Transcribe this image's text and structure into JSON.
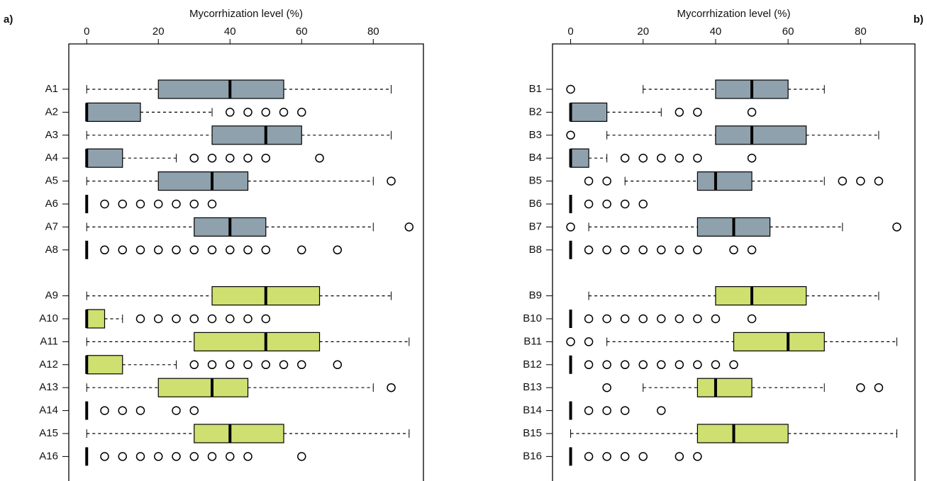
{
  "chart_data": [
    {
      "type": "boxplot",
      "panel_label": "a)",
      "xlabel": "Mycorrhization level (%)",
      "xlim": [
        -5,
        94
      ],
      "xticks": [
        0,
        20,
        40,
        60,
        80
      ],
      "groups": [
        {
          "color": "#8fa1ad",
          "categories": [
            "A1",
            "A2",
            "A3",
            "A4",
            "A5",
            "A6",
            "A7",
            "A8"
          ],
          "boxes": [
            {
              "whislo": 0,
              "q1": 20,
              "med": 40,
              "q3": 55,
              "whishi": 85,
              "fliers": []
            },
            {
              "whislo": 0,
              "q1": 0,
              "med": 0,
              "q3": 15,
              "whishi": 35,
              "fliers": [
                40,
                45,
                50,
                55,
                60
              ]
            },
            {
              "whislo": 0,
              "q1": 35,
              "med": 50,
              "q3": 60,
              "whishi": 85,
              "fliers": []
            },
            {
              "whislo": 0,
              "q1": 0,
              "med": 0,
              "q3": 10,
              "whishi": 25,
              "fliers": [
                30,
                35,
                40,
                45,
                50,
                65
              ]
            },
            {
              "whislo": 0,
              "q1": 20,
              "med": 35,
              "q3": 45,
              "whishi": 80,
              "fliers": [
                85
              ]
            },
            {
              "whislo": 0,
              "q1": 0,
              "med": 0,
              "q3": 0,
              "whishi": 0,
              "fliers": [
                5,
                10,
                15,
                20,
                25,
                30,
                35
              ]
            },
            {
              "whislo": 0,
              "q1": 30,
              "med": 40,
              "q3": 50,
              "whishi": 80,
              "fliers": [
                90
              ]
            },
            {
              "whislo": 0,
              "q1": 0,
              "med": 0,
              "q3": 0,
              "whishi": 0,
              "fliers": [
                5,
                10,
                15,
                20,
                25,
                30,
                35,
                40,
                45,
                50,
                60,
                70
              ]
            }
          ]
        },
        {
          "color": "#cfe070",
          "categories": [
            "A9",
            "A10",
            "A11",
            "A12",
            "A13",
            "A14",
            "A15",
            "A16"
          ],
          "boxes": [
            {
              "whislo": 0,
              "q1": 35,
              "med": 50,
              "q3": 65,
              "whishi": 85,
              "fliers": []
            },
            {
              "whislo": 0,
              "q1": 0,
              "med": 0,
              "q3": 5,
              "whishi": 10,
              "fliers": [
                15,
                20,
                25,
                30,
                35,
                40,
                45,
                50
              ]
            },
            {
              "whislo": 0,
              "q1": 30,
              "med": 50,
              "q3": 65,
              "whishi": 90,
              "fliers": []
            },
            {
              "whislo": 0,
              "q1": 0,
              "med": 0,
              "q3": 10,
              "whishi": 25,
              "fliers": [
                30,
                35,
                40,
                45,
                50,
                55,
                60,
                70
              ]
            },
            {
              "whislo": 0,
              "q1": 20,
              "med": 35,
              "q3": 45,
              "whishi": 80,
              "fliers": [
                85
              ]
            },
            {
              "whislo": 0,
              "q1": 0,
              "med": 0,
              "q3": 0,
              "whishi": 0,
              "fliers": [
                5,
                10,
                15,
                25,
                30
              ]
            },
            {
              "whislo": 0,
              "q1": 30,
              "med": 40,
              "q3": 55,
              "whishi": 90,
              "fliers": []
            },
            {
              "whislo": 0,
              "q1": 0,
              "med": 0,
              "q3": 0,
              "whishi": 0,
              "fliers": [
                5,
                10,
                15,
                20,
                25,
                30,
                35,
                40,
                45,
                60
              ]
            }
          ]
        }
      ]
    },
    {
      "type": "boxplot",
      "panel_label": "b)",
      "xlabel": "Mycorrhization level (%)",
      "xlim": [
        -5,
        95
      ],
      "xticks": [
        0,
        20,
        40,
        60,
        80
      ],
      "groups": [
        {
          "color": "#8fa1ad",
          "categories": [
            "B1",
            "B2",
            "B3",
            "B4",
            "B5",
            "B6",
            "B7",
            "B8"
          ],
          "boxes": [
            {
              "whislo": 20,
              "q1": 40,
              "med": 50,
              "q3": 60,
              "whishi": 70,
              "fliers": [
                0
              ]
            },
            {
              "whislo": 0,
              "q1": 0,
              "med": 0,
              "q3": 10,
              "whishi": 25,
              "fliers": [
                30,
                35,
                50
              ]
            },
            {
              "whislo": 10,
              "q1": 40,
              "med": 50,
              "q3": 65,
              "whishi": 85,
              "fliers": [
                0
              ]
            },
            {
              "whislo": 0,
              "q1": 0,
              "med": 0,
              "q3": 5,
              "whishi": 10,
              "fliers": [
                15,
                20,
                25,
                30,
                35,
                50
              ]
            },
            {
              "whislo": 15,
              "q1": 35,
              "med": 40,
              "q3": 50,
              "whishi": 70,
              "fliers": [
                5,
                10,
                75,
                80,
                85
              ]
            },
            {
              "whislo": 0,
              "q1": 0,
              "med": 0,
              "q3": 0,
              "whishi": 0,
              "fliers": [
                5,
                10,
                15,
                20
              ]
            },
            {
              "whislo": 5,
              "q1": 35,
              "med": 45,
              "q3": 55,
              "whishi": 75,
              "fliers": [
                0,
                90
              ]
            },
            {
              "whislo": 0,
              "q1": 0,
              "med": 0,
              "q3": 0,
              "whishi": 0,
              "fliers": [
                5,
                10,
                15,
                20,
                25,
                30,
                35,
                45,
                50
              ]
            }
          ]
        },
        {
          "color": "#cfe070",
          "categories": [
            "B9",
            "B10",
            "B11",
            "B12",
            "B13",
            "B14",
            "B15",
            "B16"
          ],
          "boxes": [
            {
              "whislo": 5,
              "q1": 40,
              "med": 50,
              "q3": 65,
              "whishi": 85,
              "fliers": []
            },
            {
              "whislo": 0,
              "q1": 0,
              "med": 0,
              "q3": 0,
              "whishi": 0,
              "fliers": [
                5,
                10,
                15,
                20,
                25,
                30,
                35,
                40,
                50
              ]
            },
            {
              "whislo": 10,
              "q1": 45,
              "med": 60,
              "q3": 70,
              "whishi": 90,
              "fliers": [
                0,
                5
              ]
            },
            {
              "whislo": 0,
              "q1": 0,
              "med": 0,
              "q3": 0,
              "whishi": 0,
              "fliers": [
                5,
                10,
                15,
                20,
                25,
                30,
                35,
                40,
                45
              ]
            },
            {
              "whislo": 20,
              "q1": 35,
              "med": 40,
              "q3": 50,
              "whishi": 70,
              "fliers": [
                10,
                80,
                85
              ]
            },
            {
              "whislo": 0,
              "q1": 0,
              "med": 0,
              "q3": 0,
              "whishi": 0,
              "fliers": [
                5,
                10,
                15,
                25
              ]
            },
            {
              "whislo": 0,
              "q1": 35,
              "med": 45,
              "q3": 60,
              "whishi": 90,
              "fliers": []
            },
            {
              "whislo": 0,
              "q1": 0,
              "med": 0,
              "q3": 0,
              "whishi": 0,
              "fliers": [
                5,
                10,
                15,
                20,
                30,
                35
              ]
            }
          ]
        }
      ]
    }
  ]
}
